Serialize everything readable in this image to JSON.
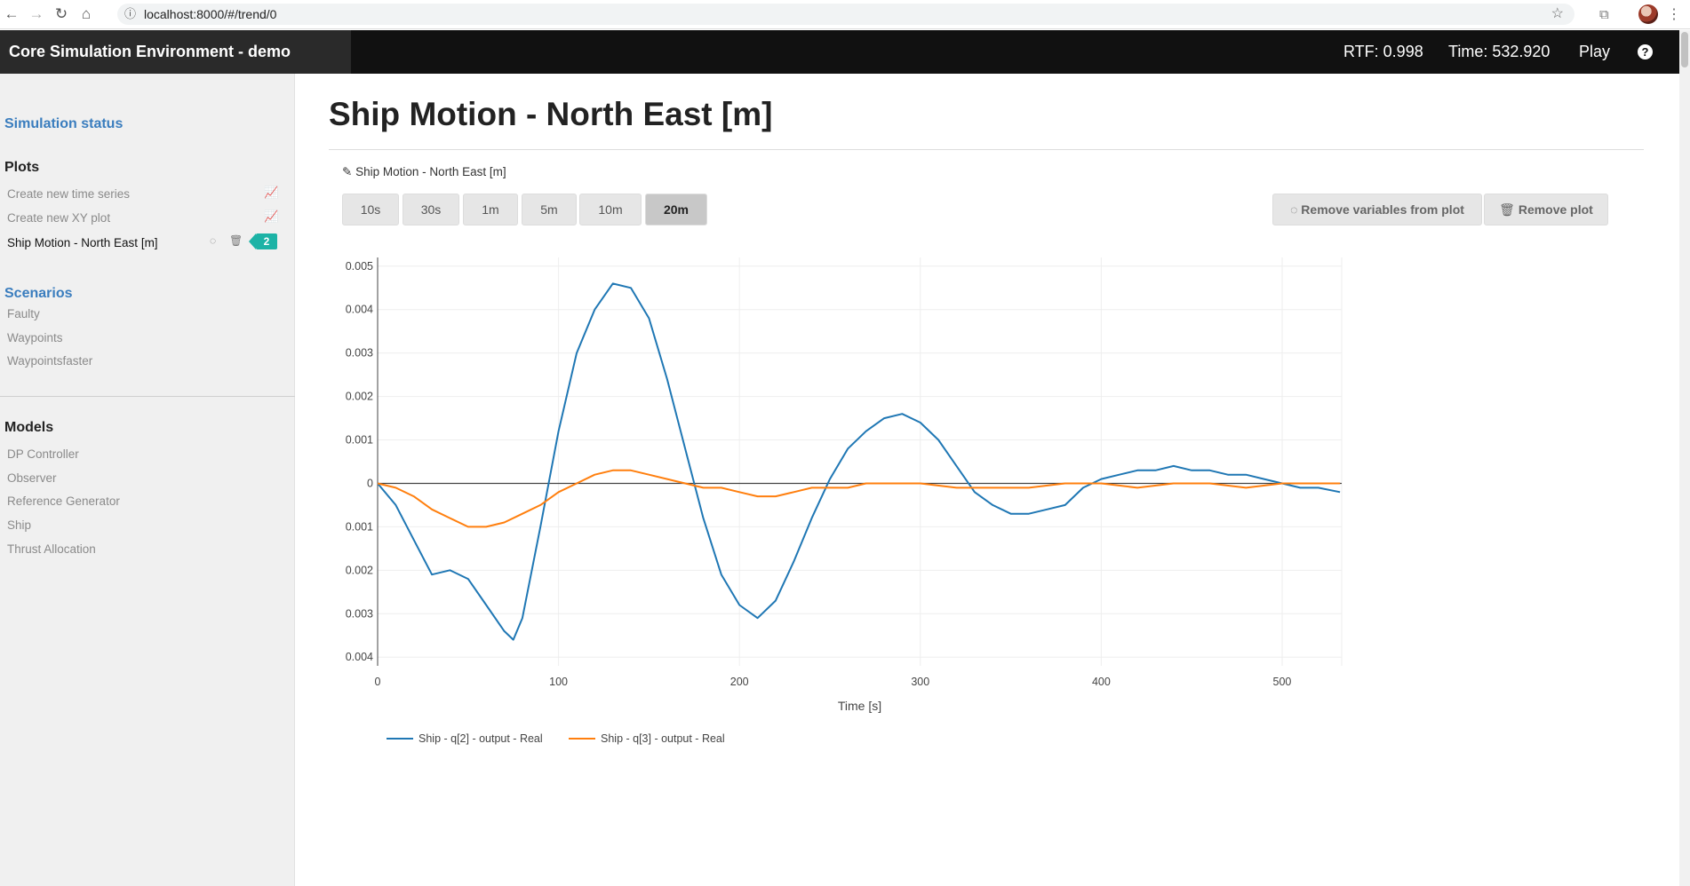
{
  "browser": {
    "url": "localhost:8000/#/trend/0"
  },
  "navbar": {
    "brand": "Core Simulation Environment - demo application",
    "rtf": "RTF: 0.998",
    "time": "Time: 532.920",
    "play": "Play",
    "help": "?"
  },
  "sidebar": {
    "simulation_status": "Simulation status",
    "plots_heading": "Plots",
    "plots": [
      {
        "label": "Create new time series"
      },
      {
        "label": "Create new XY plot"
      },
      {
        "label": "Ship Motion - North East [m]",
        "badge": "2"
      }
    ],
    "scenarios_heading": "Scenarios",
    "scenarios": [
      "Faulty",
      "Waypoints",
      "Waypointsfaster"
    ],
    "models_heading": "Models",
    "models": [
      "DP Controller",
      "Observer",
      "Reference Generator",
      "Ship",
      "Thrust Allocation"
    ]
  },
  "main": {
    "title": "Ship Motion - North East [m]",
    "plot_name": "Ship Motion - North East [m]",
    "ranges": [
      "10s",
      "30s",
      "1m",
      "5m",
      "10m",
      "20m"
    ],
    "active_range": "20m",
    "remove_vars": "Remove variables from plot",
    "remove_plot": "Remove plot"
  },
  "colors": {
    "series1": "#1f77b4",
    "series2": "#ff7f0e",
    "link": "#3a7dbe",
    "badge": "#1cb3a6"
  },
  "chart_data": {
    "type": "line",
    "xlabel": "Time [s]",
    "ylabel": "",
    "xlim": [
      0,
      532.92
    ],
    "ylim": [
      -0.0042,
      0.0052
    ],
    "x_ticks": [
      0,
      100,
      200,
      300,
      400,
      500
    ],
    "y_ticks": [
      0.005,
      0.004,
      0.003,
      0.002,
      0.001,
      0,
      -0.001,
      -0.002,
      -0.003,
      -0.004
    ],
    "y_tick_labels": [
      "0.005",
      "0.004",
      "0.003",
      "0.002",
      "0.001",
      "0",
      "0.001",
      "0.002",
      "0.003",
      "0.004"
    ],
    "x_tick_labels": [
      "0",
      "100",
      "200",
      "300",
      "400",
      "500"
    ],
    "grid": true,
    "legend_position": "bottom-left",
    "series": [
      {
        "name": "Ship - q[2] - output - Real",
        "x": [
          0,
          10,
          20,
          30,
          40,
          50,
          60,
          70,
          75,
          80,
          90,
          100,
          110,
          120,
          130,
          140,
          150,
          160,
          170,
          180,
          190,
          200,
          210,
          220,
          230,
          240,
          250,
          260,
          270,
          280,
          290,
          300,
          310,
          320,
          330,
          340,
          350,
          360,
          370,
          380,
          390,
          400,
          410,
          420,
          430,
          440,
          450,
          460,
          470,
          480,
          490,
          500,
          510,
          520,
          532
        ],
        "y": [
          0.0,
          -0.0005,
          -0.0013,
          -0.0021,
          -0.002,
          -0.0022,
          -0.0028,
          -0.0034,
          -0.0036,
          -0.0031,
          -0.001,
          0.0012,
          0.003,
          0.004,
          0.0046,
          0.0045,
          0.0038,
          0.0024,
          0.0008,
          -0.0008,
          -0.0021,
          -0.0028,
          -0.0031,
          -0.0027,
          -0.0018,
          -0.0008,
          0.0001,
          0.0008,
          0.0012,
          0.0015,
          0.0016,
          0.0014,
          0.001,
          0.0004,
          -0.0002,
          -0.0005,
          -0.0007,
          -0.0007,
          -0.0006,
          -0.0005,
          -0.0001,
          0.0001,
          0.0002,
          0.0003,
          0.0003,
          0.0004,
          0.0003,
          0.0003,
          0.0002,
          0.0002,
          0.0001,
          0.0,
          -0.0001,
          -0.0001,
          -0.0002
        ]
      },
      {
        "name": "Ship - q[3] - output - Real",
        "x": [
          0,
          10,
          20,
          30,
          40,
          50,
          60,
          70,
          80,
          90,
          100,
          110,
          120,
          130,
          140,
          150,
          160,
          170,
          180,
          190,
          200,
          210,
          220,
          230,
          240,
          250,
          260,
          270,
          280,
          290,
          300,
          320,
          340,
          360,
          380,
          400,
          420,
          440,
          460,
          480,
          500,
          520,
          532
        ],
        "y": [
          0.0,
          -0.0001,
          -0.0003,
          -0.0006,
          -0.0008,
          -0.001,
          -0.001,
          -0.0009,
          -0.0007,
          -0.0005,
          -0.0002,
          0.0,
          0.0002,
          0.0003,
          0.0003,
          0.0002,
          0.0001,
          0.0,
          -0.0001,
          -0.0001,
          -0.0002,
          -0.0003,
          -0.0003,
          -0.0002,
          -0.0001,
          -0.0001,
          -0.0001,
          0.0,
          0.0,
          0.0,
          0.0,
          -0.0001,
          -0.0001,
          -0.0001,
          0.0,
          0.0,
          -0.0001,
          0.0,
          0.0,
          -0.0001,
          0.0,
          0.0,
          0.0
        ]
      }
    ]
  }
}
